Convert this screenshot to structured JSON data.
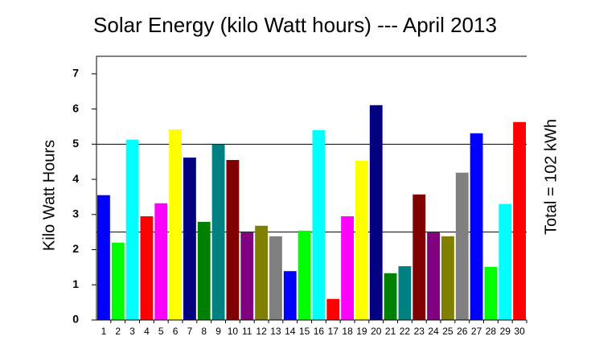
{
  "chart_data": {
    "type": "bar",
    "title": "Solar Energy (kilo Watt hours) --- April 2013",
    "y_label": "Kilo Watt Hours",
    "annotation": "Total = 102 kWh",
    "categories": [
      "1",
      "2",
      "3",
      "4",
      "5",
      "6",
      "7",
      "8",
      "9",
      "10",
      "11",
      "12",
      "13",
      "14",
      "15",
      "16",
      "17",
      "18",
      "19",
      "20",
      "21",
      "22",
      "23",
      "24",
      "25",
      "26",
      "27",
      "28",
      "29",
      "30"
    ],
    "values": [
      3.55,
      2.2,
      5.13,
      2.95,
      3.32,
      5.42,
      4.62,
      2.79,
      4.99,
      4.55,
      2.49,
      2.68,
      2.38,
      1.39,
      2.54,
      5.4,
      0.6,
      2.95,
      4.53,
      6.11,
      1.33,
      1.53,
      3.57,
      2.49,
      2.38,
      4.19,
      5.31,
      1.51,
      3.3,
      5.63
    ],
    "colors": [
      "#0000ff",
      "#00ff00",
      "#00ffff",
      "#ff0000",
      "#ff00ff",
      "#ffff00",
      "#000080",
      "#008000",
      "#008080",
      "#800000",
      "#800080",
      "#808000",
      "#808080",
      "#0000ff",
      "#00ff00",
      "#00ffff",
      "#ff0000",
      "#ff00ff",
      "#ffff00",
      "#000080",
      "#008000",
      "#008080",
      "#800000",
      "#800080",
      "#808000",
      "#808080",
      "#0000ff",
      "#00ff00",
      "#00ffff",
      "#ff0000"
    ],
    "ylim": [
      0,
      7.5
    ],
    "yticks": [
      0,
      1,
      2,
      3,
      4,
      5,
      6,
      7
    ],
    "hlines": [
      2.5,
      5
    ]
  }
}
